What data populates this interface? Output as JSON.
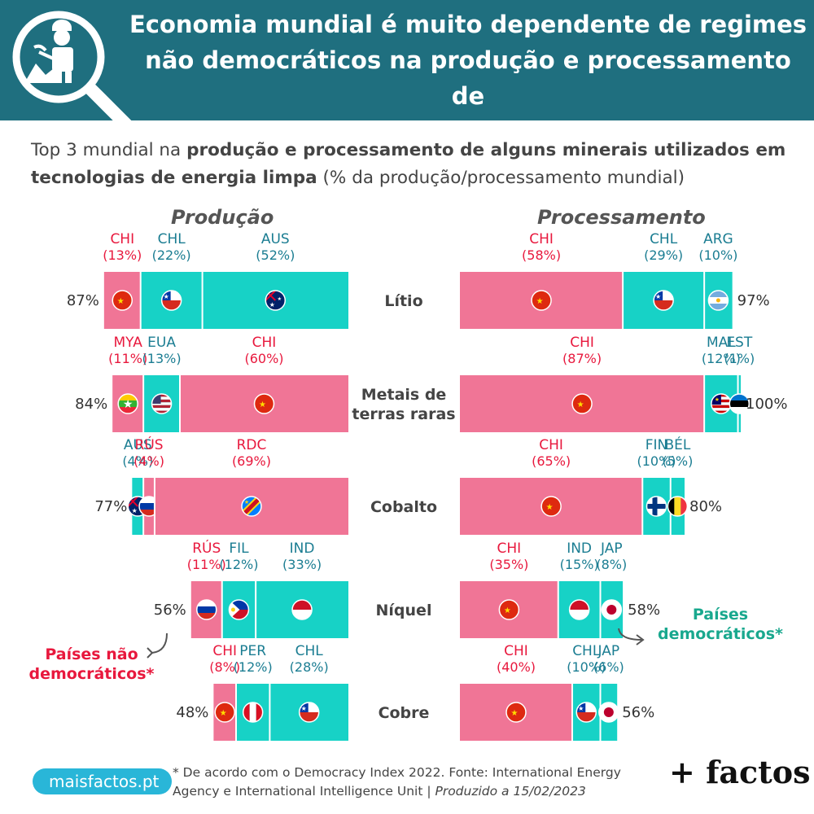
{
  "title": "Economia mundial é muito dependente de regimes\nnão democráticos na produção e processamento de\nminerais utilizados em tecnologias de energia limpa",
  "subtitle": {
    "prefix": "Top 3 mundial na ",
    "bold": "produção e processamento de alguns minerais utilizados em tecnologias de energia limpa",
    "suffix": " (% da produção/processamento mundial)"
  },
  "colors": {
    "non_democratic": "#f07596",
    "democratic": "#17d2c6",
    "label_nd": "#e8183d",
    "label_d": "#1b7d92",
    "header": "#1f6f7f"
  },
  "notes": {
    "non_democratic": "Países não democráticos*",
    "democratic": "Países democráticos*"
  },
  "footer": {
    "site": "maisfactos.pt",
    "footnote_main": "* De acordo com o Democracy Index 2022. Fonte: International Energy Agency e International Intelligence Unit | ",
    "footnote_italic": "Produzido a 15/02/2023",
    "brand": "+ factos"
  },
  "chart_data": {
    "type": "bar",
    "stacked": true,
    "unit": "%",
    "categories": [
      "Lítio",
      "Metais de terras raras",
      "Cobalto",
      "Níquel",
      "Cobre"
    ],
    "panels": [
      {
        "name": "Produção",
        "totals": [
          87,
          84,
          77,
          56,
          48
        ],
        "segments": [
          [
            {
              "country": "CHI",
              "value": 13,
              "democratic": false,
              "flag": "china"
            },
            {
              "country": "CHL",
              "value": 22,
              "democratic": true,
              "flag": "chile"
            },
            {
              "country": "AUS",
              "value": 52,
              "democratic": true,
              "flag": "australia"
            }
          ],
          [
            {
              "country": "MYA",
              "value": 11,
              "democratic": false,
              "flag": "myanmar"
            },
            {
              "country": "EUA",
              "value": 13,
              "democratic": true,
              "flag": "usa"
            },
            {
              "country": "CHI",
              "value": 60,
              "democratic": false,
              "flag": "china"
            }
          ],
          [
            {
              "country": "AUS",
              "value": 4,
              "democratic": true,
              "flag": "australia"
            },
            {
              "country": "RÚS",
              "value": 4,
              "democratic": false,
              "flag": "russia"
            },
            {
              "country": "RDC",
              "value": 69,
              "democratic": false,
              "flag": "drc"
            }
          ],
          [
            {
              "country": "RÚS",
              "value": 11,
              "democratic": false,
              "flag": "russia"
            },
            {
              "country": "FIL",
              "value": 12,
              "democratic": true,
              "flag": "philippines"
            },
            {
              "country": "IND",
              "value": 33,
              "democratic": true,
              "flag": "indonesia"
            }
          ],
          [
            {
              "country": "CHI",
              "value": 8,
              "democratic": false,
              "flag": "china"
            },
            {
              "country": "PER",
              "value": 12,
              "democratic": true,
              "flag": "peru"
            },
            {
              "country": "CHL",
              "value": 28,
              "democratic": true,
              "flag": "chile"
            }
          ]
        ]
      },
      {
        "name": "Processamento",
        "totals": [
          97,
          100,
          80,
          58,
          56
        ],
        "segments": [
          [
            {
              "country": "CHI",
              "value": 58,
              "democratic": false,
              "flag": "china"
            },
            {
              "country": "CHL",
              "value": 29,
              "democratic": true,
              "flag": "chile"
            },
            {
              "country": "ARG",
              "value": 10,
              "democratic": true,
              "flag": "argentina"
            }
          ],
          [
            {
              "country": "CHI",
              "value": 87,
              "democratic": false,
              "flag": "china"
            },
            {
              "country": "MAL",
              "value": 12,
              "democratic": true,
              "flag": "malaysia"
            },
            {
              "country": "EST",
              "value": 1,
              "democratic": true,
              "flag": "estonia"
            }
          ],
          [
            {
              "country": "CHI",
              "value": 65,
              "democratic": false,
              "flag": "china"
            },
            {
              "country": "FIN",
              "value": 10,
              "democratic": true,
              "flag": "finland"
            },
            {
              "country": "BÉL",
              "value": 5,
              "democratic": true,
              "flag": "belgium"
            }
          ],
          [
            {
              "country": "CHI",
              "value": 35,
              "democratic": false,
              "flag": "china"
            },
            {
              "country": "IND",
              "value": 15,
              "democratic": true,
              "flag": "indonesia"
            },
            {
              "country": "JAP",
              "value": 8,
              "democratic": true,
              "flag": "japan"
            }
          ],
          [
            {
              "country": "CHI",
              "value": 40,
              "democratic": false,
              "flag": "china"
            },
            {
              "country": "CHL",
              "value": 10,
              "democratic": true,
              "flag": "chile"
            },
            {
              "country": "JAP",
              "value": 6,
              "democratic": true,
              "flag": "japan"
            }
          ]
        ]
      }
    ]
  }
}
